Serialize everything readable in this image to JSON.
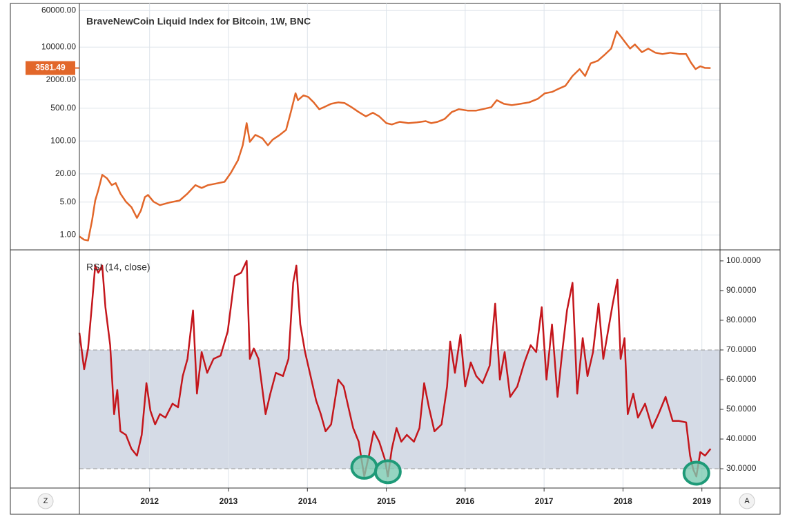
{
  "chart_data": [
    {
      "type": "line",
      "title": "BraveNewCoin Liquid Index for Bitcoin, 1W, BNC",
      "color": "#e2672a",
      "log_scale": true,
      "grid": true,
      "ylim": [
        0.48,
        85000
      ],
      "yticks": [
        {
          "value": 1,
          "label": "1.00"
        },
        {
          "value": 5,
          "label": "5.00"
        },
        {
          "value": 20,
          "label": "20.00"
        },
        {
          "value": 100,
          "label": "100.00"
        },
        {
          "value": 500,
          "label": "500.00"
        },
        {
          "value": 2000,
          "label": "2000.00"
        },
        {
          "value": 10000,
          "label": "10000.00"
        },
        {
          "value": 60000,
          "label": "60000.00"
        }
      ],
      "last_value": 3581.49,
      "x": [
        2011.11,
        2011.17,
        2011.22,
        2011.27,
        2011.31,
        2011.35,
        2011.4,
        2011.46,
        2011.52,
        2011.57,
        2011.63,
        2011.7,
        2011.77,
        2011.84,
        2011.89,
        2011.94,
        2011.98,
        2012.05,
        2012.13,
        2012.25,
        2012.38,
        2012.48,
        2012.58,
        2012.66,
        2012.74,
        2012.83,
        2012.95,
        2013.03,
        2013.12,
        2013.18,
        2013.23,
        2013.27,
        2013.34,
        2013.43,
        2013.5,
        2013.56,
        2013.65,
        2013.73,
        2013.79,
        2013.85,
        2013.88,
        2013.95,
        2014.01,
        2014.08,
        2014.15,
        2014.21,
        2014.3,
        2014.39,
        2014.47,
        2014.56,
        2014.65,
        2014.74,
        2014.83,
        2014.91,
        2015.0,
        2015.07,
        2015.17,
        2015.28,
        2015.39,
        2015.5,
        2015.57,
        2015.65,
        2015.74,
        2015.83,
        2015.92,
        2016.03,
        2016.14,
        2016.22,
        2016.33,
        2016.4,
        2016.49,
        2016.59,
        2016.7,
        2016.81,
        2016.92,
        2017.01,
        2017.1,
        2017.19,
        2017.27,
        2017.36,
        2017.45,
        2017.52,
        2017.59,
        2017.68,
        2017.76,
        2017.85,
        2017.92,
        2017.97,
        2018.02,
        2018.09,
        2018.15,
        2018.24,
        2018.32,
        2018.41,
        2018.5,
        2018.6,
        2018.72,
        2018.8,
        2018.86,
        2018.92,
        2018.98,
        2019.04,
        2019.11
      ],
      "values": [
        0.93,
        0.79,
        0.76,
        2,
        5.4,
        9,
        19,
        16,
        11.5,
        12.7,
        7.6,
        5.1,
        3.9,
        2.3,
        3.3,
        6.4,
        7.1,
        5.1,
        4.3,
        4.9,
        5.4,
        7.6,
        11.5,
        10,
        11.5,
        12.3,
        13.5,
        21,
        39,
        81,
        240,
        96,
        135,
        114,
        81,
        107,
        135,
        172,
        414,
        1040,
        740,
        935,
        870,
        665,
        475,
        525,
        620,
        665,
        645,
        525,
        414,
        335,
        400,
        335,
        240,
        225,
        256,
        240,
        250,
        265,
        240,
        256,
        295,
        414,
        475,
        444,
        444,
        475,
        525,
        740,
        620,
        580,
        620,
        665,
        790,
        1040,
        1110,
        1310,
        1500,
        2420,
        3400,
        2420,
        4500,
        5100,
        6700,
        9300,
        21700,
        17000,
        13200,
        9300,
        11400,
        7800,
        9300,
        7600,
        7100,
        7600,
        7100,
        7100,
        4700,
        3400,
        3900,
        3600,
        3581.49
      ]
    },
    {
      "type": "line",
      "title": "RSI (14, close)",
      "color": "#c4161c",
      "xlim": [
        2011.11,
        2019.23
      ],
      "xticks": [
        2012,
        2013,
        2014,
        2015,
        2016,
        2017,
        2018,
        2019
      ],
      "ylim": [
        23.5,
        103.7
      ],
      "yticks": [
        {
          "value": 30,
          "label": "30.0000"
        },
        {
          "value": 40,
          "label": "40.0000"
        },
        {
          "value": 50,
          "label": "50.0000"
        },
        {
          "value": 60,
          "label": "60.0000"
        },
        {
          "value": 70,
          "label": "70.0000"
        },
        {
          "value": 80,
          "label": "80.0000"
        },
        {
          "value": 90,
          "label": "90.0000"
        },
        {
          "value": 100,
          "label": "100.0000"
        }
      ],
      "band": [
        30,
        70
      ],
      "band_color": "#d5dbe6",
      "highlights": {
        "x": [
          2014.72,
          2015.02,
          2018.93
        ],
        "values": [
          30.5,
          29,
          28.5
        ],
        "color": "#7ccbb2",
        "stroke": "#1e9a78"
      },
      "x": [
        2011.11,
        2011.17,
        2011.22,
        2011.27,
        2011.31,
        2011.35,
        2011.4,
        2011.44,
        2011.5,
        2011.55,
        2011.59,
        2011.63,
        2011.7,
        2011.77,
        2011.84,
        2011.9,
        2011.96,
        2012.01,
        2012.07,
        2012.13,
        2012.2,
        2012.29,
        2012.36,
        2012.42,
        2012.48,
        2012.55,
        2012.6,
        2012.66,
        2012.73,
        2012.81,
        2012.9,
        2012.99,
        2013.08,
        2013.16,
        2013.23,
        2013.27,
        2013.32,
        2013.38,
        2013.47,
        2013.53,
        2013.6,
        2013.69,
        2013.76,
        2013.82,
        2013.86,
        2013.91,
        2013.97,
        2014.04,
        2014.11,
        2014.17,
        2014.23,
        2014.3,
        2014.39,
        2014.46,
        2014.52,
        2014.58,
        2014.65,
        2014.72,
        2014.78,
        2014.84,
        2014.91,
        2014.98,
        2015.02,
        2015.07,
        2015.13,
        2015.19,
        2015.26,
        2015.35,
        2015.42,
        2015.48,
        2015.54,
        2015.61,
        2015.7,
        2015.77,
        2015.81,
        2015.87,
        2015.94,
        2016.0,
        2016.07,
        2016.14,
        2016.22,
        2016.31,
        2016.38,
        2016.44,
        2016.5,
        2016.57,
        2016.66,
        2016.75,
        2016.83,
        2016.9,
        2016.97,
        2017.03,
        2017.1,
        2017.17,
        2017.23,
        2017.29,
        2017.36,
        2017.42,
        2017.49,
        2017.55,
        2017.62,
        2017.69,
        2017.75,
        2017.81,
        2017.87,
        2017.93,
        2017.97,
        2018.02,
        2018.06,
        2018.13,
        2018.19,
        2018.28,
        2018.37,
        2018.45,
        2018.54,
        2018.63,
        2018.71,
        2018.8,
        2018.85,
        2018.89,
        2018.93,
        2018.98,
        2019.04,
        2019.11
      ],
      "values": [
        75.8,
        63.5,
        70.5,
        85.6,
        98.4,
        96,
        98.4,
        84.4,
        71.6,
        48.4,
        56.5,
        42.6,
        41.4,
        36.7,
        34.4,
        41.4,
        58.8,
        49.5,
        44.9,
        48.4,
        47.2,
        51.9,
        50.7,
        61.2,
        67,
        83.3,
        55.3,
        69.3,
        62.3,
        67,
        68.1,
        76.3,
        94.9,
        96,
        100,
        67,
        70.5,
        67,
        48.4,
        55.3,
        62.3,
        61.2,
        67,
        92.6,
        98.4,
        78.6,
        69.3,
        61.2,
        53,
        48.4,
        42.6,
        44.9,
        60,
        57.7,
        50.7,
        43.7,
        39.1,
        27.4,
        34.4,
        42.6,
        39.1,
        33.3,
        27.4,
        36.7,
        43.7,
        39.1,
        41.4,
        39.1,
        43.7,
        58.8,
        50.7,
        42.6,
        44.9,
        57.7,
        72.8,
        62.3,
        75.1,
        57.7,
        65.8,
        61.2,
        58.8,
        64.7,
        85.6,
        60,
        69.3,
        54.2,
        57.7,
        65.8,
        71.6,
        69.3,
        84.4,
        60,
        78.6,
        54.2,
        69.3,
        83.3,
        92.6,
        55.3,
        74,
        61.2,
        69.3,
        85.6,
        67,
        76.3,
        85.6,
        93.7,
        67,
        74,
        48.4,
        55.3,
        47.2,
        51.9,
        43.7,
        48.4,
        54.2,
        46.1,
        46.1,
        45.6,
        34.4,
        29.8,
        27.4,
        35.6,
        34.4,
        36.7
      ]
    }
  ],
  "controls": {
    "left": "Z",
    "right": "A"
  }
}
